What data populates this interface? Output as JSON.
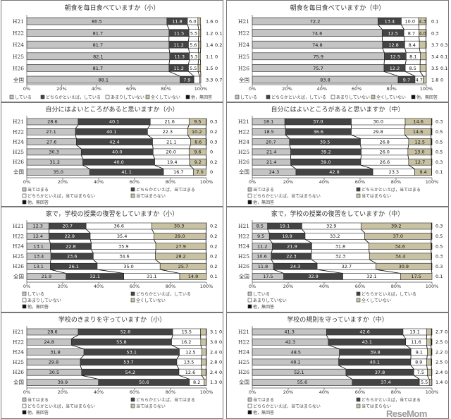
{
  "chart_data": [
    {
      "type": "bar",
      "orientation": "horizontal",
      "stacked": true,
      "title": "朝食を毎日食べていますか（小）",
      "categories": [
        "H21",
        "H22",
        "H24",
        "H25",
        "H26",
        "全国"
      ],
      "xlim": [
        0,
        100
      ],
      "xticks": [
        "0%",
        "20%",
        "40%",
        "60%",
        "80%",
        "100%"
      ],
      "legend": "bottom",
      "series": [
        {
          "name": "している",
          "values": [
            80.5,
            81.7,
            81.7,
            82.1,
            81.7,
            88.1
          ]
        },
        {
          "name": "どちらかといえば，している",
          "values": [
            11.8,
            11.5,
            11.2,
            11.3,
            11.2,
            7.9
          ]
        },
        {
          "name": "あまりしていない",
          "values": [
            6.0,
            5.5,
            5.6,
            5.3,
            5.5,
            3.3
          ]
        },
        {
          "name": "全くしていない",
          "values": [
            1.6,
            1.2,
            1.4,
            1.1,
            1.5,
            0.7
          ]
        },
        {
          "name": "他，無回答",
          "values": [
            0,
            0.1,
            0.2,
            0,
            0,
            0
          ]
        }
      ]
    },
    {
      "type": "bar",
      "orientation": "horizontal",
      "stacked": true,
      "title": "朝食を毎日食べていますか（中）",
      "categories": [
        "H21",
        "H22",
        "H24",
        "H25",
        "H26",
        "全国"
      ],
      "xlim": [
        0,
        100
      ],
      "xticks": [
        "0%",
        "20%",
        "40%",
        "60%",
        "80%",
        "100%"
      ],
      "legend": "bottom",
      "series": [
        {
          "name": "している",
          "values": [
            72.2,
            74.6,
            74.8,
            75.9,
            75.7,
            83.8
          ]
        },
        {
          "name": "どちらかといえば，している",
          "values": [
            13.4,
            12.5,
            12.8,
            12.5,
            12.2,
            9.7
          ]
        },
        {
          "name": "あまりしていない",
          "values": [
            10.0,
            8.7,
            8.4,
            8.1,
            8.5,
            4.7
          ]
        },
        {
          "name": "全くしていない",
          "values": [
            4.3,
            4.0,
            3.7,
            3.4,
            3.5,
            1.8
          ]
        },
        {
          "name": "他，無回答",
          "values": [
            0.1,
            0.3,
            0.3,
            0.1,
            0.1,
            0
          ]
        }
      ]
    },
    {
      "type": "bar",
      "orientation": "horizontal",
      "stacked": true,
      "title": "自分にはよいところがあると思いますか（小）",
      "categories": [
        "H21",
        "H22",
        "H24",
        "H25",
        "H26",
        "全国"
      ],
      "xlim": [
        0,
        100
      ],
      "xticks": [
        "0%",
        "20%",
        "40%",
        "60%",
        "80%",
        "100%"
      ],
      "legend": "bottom",
      "series": [
        {
          "name": "当てはまる",
          "values": [
            28.6,
            27.1,
            27.6,
            30.3,
            31.2,
            35.0
          ]
        },
        {
          "name": "どちらかといえば，当てはまる",
          "values": [
            40.1,
            40.1,
            42.4,
            40.0,
            40.0,
            41.1
          ]
        },
        {
          "name": "どちらかといえば，当てはまらない",
          "values": [
            21.6,
            22.3,
            21.1,
            20.0,
            19.4,
            16.7
          ]
        },
        {
          "name": "当てはまらない",
          "values": [
            9.5,
            10.2,
            8.6,
            9.6,
            9.2,
            7.0
          ]
        },
        {
          "name": "他，無回答",
          "values": [
            0.3,
            0.2,
            0.3,
            0,
            0.2,
            0
          ]
        }
      ]
    },
    {
      "type": "bar",
      "orientation": "horizontal",
      "stacked": true,
      "title": "自分にはよいところがあると思いますか（中）",
      "categories": [
        "H21",
        "H22",
        "H24",
        "H25",
        "H26",
        "全国"
      ],
      "xlim": [
        0,
        100
      ],
      "xticks": [
        "0%",
        "20%",
        "40%",
        "60%",
        "80%",
        "100%"
      ],
      "legend": "bottom",
      "series": [
        {
          "name": "当てはまる",
          "values": [
            18.1,
            18.5,
            20.7,
            21.4,
            21.4,
            24.3
          ]
        },
        {
          "name": "どちらかといえば，当てはまる",
          "values": [
            37.0,
            36.6,
            39.5,
            39.2,
            39.0,
            42.8
          ]
        },
        {
          "name": "どちらかといえば，当てはまらない",
          "values": [
            30.0,
            29.8,
            26.8,
            26.0,
            26.6,
            23.3
          ]
        },
        {
          "name": "当てはまらない",
          "values": [
            14.6,
            14.6,
            12.5,
            13.0,
            12.7,
            9.4
          ]
        },
        {
          "name": "他，無回答",
          "values": [
            0.3,
            0.5,
            0.5,
            0.5,
            0.3,
            0.1
          ]
        }
      ]
    },
    {
      "type": "bar",
      "orientation": "horizontal",
      "stacked": true,
      "title": "家で，学校の授業の復習をしていますか（小）",
      "categories": [
        "H21",
        "H22",
        "H24",
        "H25",
        "H26",
        "全国"
      ],
      "xlim": [
        0,
        100
      ],
      "xticks": [
        "0%",
        "20%",
        "40%",
        "60%",
        "80%",
        "100%"
      ],
      "legend": "bottom",
      "series": [
        {
          "name": "している",
          "values": [
            12.3,
            12.4,
            13.1,
            13.4,
            13.1,
            21.9
          ]
        },
        {
          "name": "どちらかといえば，している",
          "values": [
            20.7,
            22.9,
            22.8,
            23.6,
            26.1,
            32.1
          ]
        },
        {
          "name": "あまりしていない",
          "values": [
            36.6,
            35.4,
            35.9,
            34.6,
            35.0,
            31.1
          ]
        },
        {
          "name": "全くしていない",
          "values": [
            30.3,
            29.0,
            27.9,
            28.2,
            25.7,
            14.9
          ]
        },
        {
          "name": "他，無回答",
          "values": [
            0.2,
            0.2,
            0.2,
            0.2,
            0.2,
            0.1
          ]
        }
      ]
    },
    {
      "type": "bar",
      "orientation": "horizontal",
      "stacked": true,
      "title": "家で，学校の授業の復習をしていますか（中）",
      "categories": [
        "H21",
        "H22",
        "H24",
        "H25",
        "H26",
        "全国"
      ],
      "xlim": [
        0,
        100
      ],
      "xticks": [
        "0%",
        "20%",
        "40%",
        "60%",
        "80%",
        "100%"
      ],
      "legend": "bottom",
      "series": [
        {
          "name": "している",
          "values": [
            8.5,
            9.5,
            11.2,
            10.6,
            11.8,
            17.5
          ]
        },
        {
          "name": "どちらかといえば，している",
          "values": [
            19.1,
            19.9,
            21.9,
            22.3,
            24.3,
            32.9
          ]
        },
        {
          "name": "あまりしていない",
          "values": [
            32.9,
            33.2,
            31.8,
            32.3,
            32.7,
            32.1
          ]
        },
        {
          "name": "全くしていない",
          "values": [
            39.2,
            37.0,
            34.6,
            34.4,
            30.9,
            17.5
          ]
        },
        {
          "name": "他，無回答",
          "values": [
            0.3,
            0.5,
            0.5,
            0.3,
            0.3,
            0.1
          ]
        }
      ]
    },
    {
      "type": "bar",
      "orientation": "horizontal",
      "stacked": true,
      "title": "学校のきまりを守っていますか（小）",
      "categories": [
        "H21",
        "H22",
        "H24",
        "H25",
        "H26",
        "全国"
      ],
      "xlim": [
        0,
        100
      ],
      "xticks": [
        "0%",
        "20%",
        "40%",
        "60%",
        "80%",
        "100%"
      ],
      "legend": "bottom",
      "series": [
        {
          "name": "当てはまる",
          "values": [
            28.6,
            24.8,
            31.8,
            29.8,
            30.5,
            39.9
          ]
        },
        {
          "name": "どちらかといえば，当てはまる",
          "values": [
            52.6,
            55.8,
            53.1,
            53.7,
            54.2,
            50.6
          ]
        },
        {
          "name": "どちらかといえば，当てはまらない",
          "values": [
            15.5,
            16.2,
            12.5,
            13.5,
            12.6,
            8.2
          ]
        },
        {
          "name": "当てはまらない",
          "values": [
            3.1,
            3.0,
            2.4,
            2.8,
            2.4,
            1.3
          ]
        },
        {
          "name": "他，無回答",
          "values": [
            0.2,
            0.2,
            0.2,
            0.2,
            0.3,
            0.1
          ]
        }
      ]
    },
    {
      "type": "bar",
      "orientation": "horizontal",
      "stacked": true,
      "title": "学校の規則を守っていますか（中）",
      "categories": [
        "H21",
        "H22",
        "H24",
        "H25",
        "H26",
        "全国"
      ],
      "xlim": [
        0,
        100
      ],
      "xticks": [
        "0%",
        "20%",
        "40%",
        "60%",
        "80%",
        "100%"
      ],
      "legend": "bottom",
      "series": [
        {
          "name": "当てはまる",
          "values": [
            41.3,
            42.3,
            48.5,
            48.1,
            52.1,
            55.6
          ]
        },
        {
          "name": "どちらかといえば，当てはまる",
          "values": [
            42.6,
            43.1,
            39.8,
            40.1,
            37.8,
            37.4
          ]
        },
        {
          "name": "どちらかといえば，当てはまらない",
          "values": [
            13.1,
            11.6,
            9.1,
            8.9,
            7.5,
            5.5
          ]
        },
        {
          "name": "当てはまらない",
          "values": [
            2.7,
            2.5,
            2.2,
            2.5,
            2.4,
            1.4
          ]
        },
        {
          "name": "他，無回答",
          "values": [
            0.3,
            0.5,
            0.4,
            0.3,
            0.3,
            0.1
          ]
        }
      ]
    }
  ],
  "colors": {
    "series": [
      "#c4c4c4",
      "#444444",
      "#ffffff",
      "#c9c2a2",
      "#111111"
    ],
    "border": "#222222"
  },
  "watermark": "ReseMom"
}
